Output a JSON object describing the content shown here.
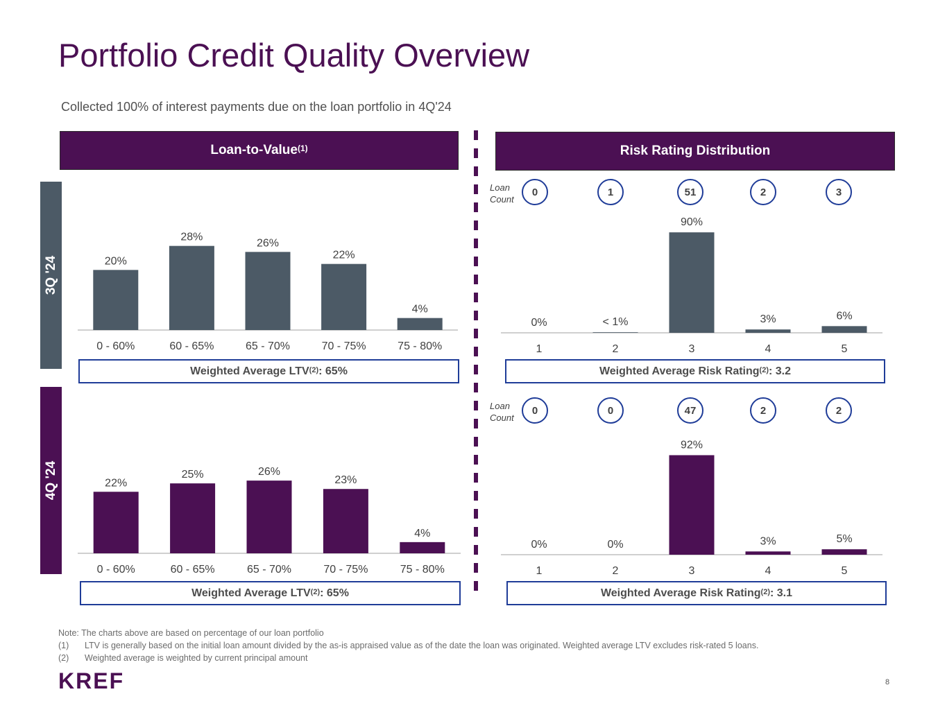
{
  "page": {
    "title": "Portfolio Credit Quality Overview",
    "subtitle": "Collected 100% of interest payments due on the loan portfolio in 4Q'24",
    "page_number": "8",
    "logo_text": "KREF"
  },
  "colors": {
    "purple": "#4b1053",
    "slate": "#4c5a66",
    "blue_border": "#1f3c98"
  },
  "ltv": {
    "header": "Loan-to-Value",
    "header_sup": "(1)",
    "wa_q3": {
      "prefix": "Weighted Average LTV",
      "sup": "(2)",
      "suffix": ": 65%"
    },
    "wa_q4": {
      "prefix": "Weighted Average LTV",
      "sup": "(2)",
      "suffix": ": 65%"
    }
  },
  "risk": {
    "header": "Risk Rating Distribution",
    "loan_count_label_1": "Loan",
    "loan_count_label_2": "Count",
    "q3_counts": [
      "0",
      "1",
      "51",
      "2",
      "3"
    ],
    "q4_counts": [
      "0",
      "0",
      "47",
      "2",
      "2"
    ],
    "wa_q3": {
      "prefix": "Weighted Average Risk Rating",
      "sup": "(2)",
      "suffix": ": 3.2"
    },
    "wa_q4": {
      "prefix": "Weighted Average Risk Rating",
      "sup": "(2)",
      "suffix": ": 3.1"
    }
  },
  "quarters": {
    "q3": "3Q '24",
    "q4": "4Q '24"
  },
  "notes": {
    "note": "Note: The charts above are based on percentage of our loan portfolio",
    "f1_num": "(1)",
    "f1_text": "LTV is generally based on the initial loan amount divided by the as-is appraised value as of the date the loan was originated. Weighted average LTV excludes risk-rated 5 loans.",
    "f2_num": "(2)",
    "f2_text": "Weighted average is weighted by current principal amount"
  },
  "chart_data": [
    {
      "id": "ltv_q3",
      "type": "bar",
      "quarter": "3Q '24",
      "categories": [
        "0 - 60%",
        "60 - 65%",
        "65 - 70%",
        "70 - 75%",
        "75 - 80%"
      ],
      "values": [
        20,
        28,
        26,
        22,
        4
      ],
      "labels": [
        "20%",
        "28%",
        "26%",
        "22%",
        "4%"
      ],
      "ylim": [
        0,
        30
      ],
      "color": "#4c5a66",
      "grid": false
    },
    {
      "id": "ltv_q4",
      "type": "bar",
      "quarter": "4Q '24",
      "categories": [
        "0 - 60%",
        "60 - 65%",
        "65 - 70%",
        "70 - 75%",
        "75 - 80%"
      ],
      "values": [
        22,
        25,
        26,
        23,
        4
      ],
      "labels": [
        "22%",
        "25%",
        "26%",
        "23%",
        "4%"
      ],
      "ylim": [
        0,
        30
      ],
      "color": "#4b1053",
      "grid": false
    },
    {
      "id": "risk_q3",
      "type": "bar",
      "quarter": "3Q '24",
      "categories": [
        "1",
        "2",
        "3",
        "4",
        "5"
      ],
      "values": [
        0,
        0.5,
        90,
        3,
        6
      ],
      "labels": [
        "0%",
        "< 1%",
        "90%",
        "3%",
        "6%"
      ],
      "ylim": [
        0,
        100
      ],
      "color": "#4c5a66",
      "grid": false
    },
    {
      "id": "risk_q4",
      "type": "bar",
      "quarter": "4Q '24",
      "categories": [
        "1",
        "2",
        "3",
        "4",
        "5"
      ],
      "values": [
        0,
        0,
        92,
        3,
        5
      ],
      "labels": [
        "0%",
        "0%",
        "92%",
        "3%",
        "5%"
      ],
      "ylim": [
        0,
        100
      ],
      "color": "#4b1053",
      "grid": false
    }
  ]
}
